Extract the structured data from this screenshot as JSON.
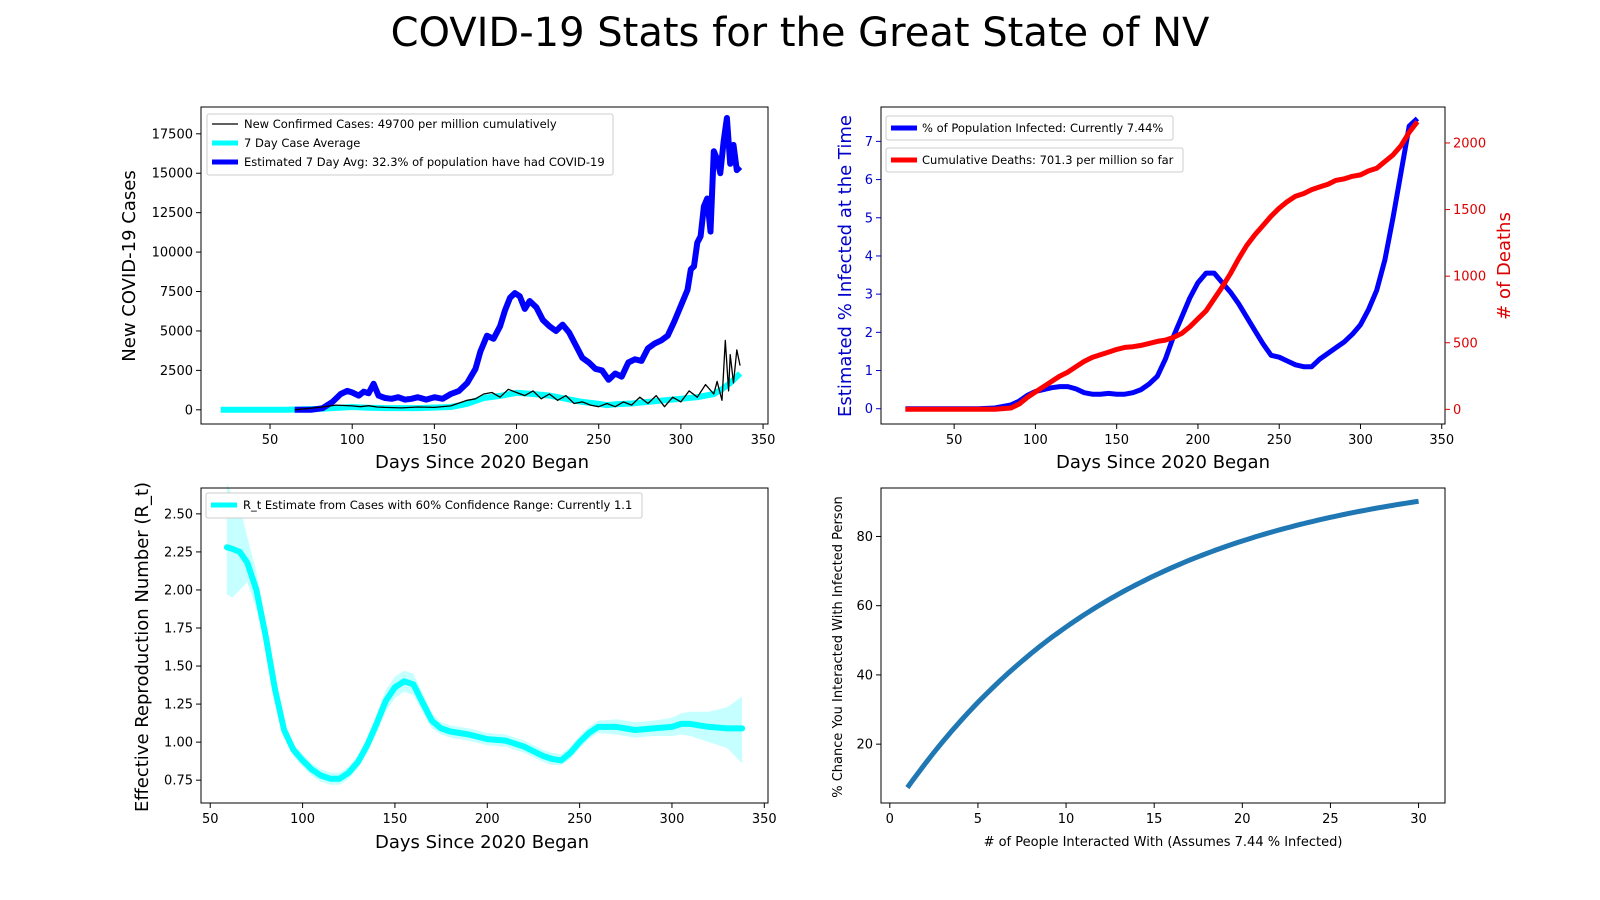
{
  "title": "COVID-19 Stats for the Great State of NV",
  "colors": {
    "daily": "#000000",
    "avg7": "#00ffff",
    "estimated": "#0000ff",
    "pct_infected": "#0000ff",
    "deaths": "#ff0000",
    "rt": "#00ffff",
    "rt_band": "#c6ffff",
    "chance": "#1f77b4"
  },
  "chart_data": [
    {
      "id": "cases",
      "type": "line",
      "xlabel": "Days Since 2020 Began",
      "ylabel": "New COVID-19 Cases",
      "xlim": [
        8,
        353
      ],
      "ylim": [
        -900,
        19200
      ],
      "xticks": [
        50,
        100,
        150,
        200,
        250,
        300,
        350
      ],
      "yticks": [
        0,
        2500,
        5000,
        7500,
        10000,
        12500,
        15000,
        17500
      ],
      "legend": "top-left",
      "series": [
        {
          "name": "New Confirmed Cases: 49700 per million cumulatively",
          "color_key": "daily",
          "x": [
            65,
            80,
            90,
            100,
            105,
            110,
            115,
            120,
            130,
            140,
            150,
            160,
            170,
            175,
            180,
            185,
            190,
            195,
            200,
            205,
            210,
            215,
            220,
            225,
            230,
            235,
            240,
            245,
            250,
            255,
            260,
            265,
            270,
            275,
            280,
            285,
            290,
            295,
            300,
            305,
            310,
            315,
            320,
            322,
            325,
            327,
            329,
            330,
            332,
            334,
            336
          ],
          "y": [
            0,
            150,
            300,
            250,
            200,
            260,
            180,
            150,
            120,
            180,
            150,
            250,
            600,
            700,
            1000,
            1100,
            800,
            1300,
            1100,
            900,
            1200,
            700,
            1000,
            600,
            900,
            400,
            500,
            300,
            200,
            400,
            200,
            500,
            300,
            800,
            400,
            900,
            200,
            800,
            500,
            1200,
            800,
            1600,
            1000,
            1800,
            600,
            4400,
            1200,
            3500,
            1700,
            3800,
            2800
          ]
        },
        {
          "name": "7 Day Case Average",
          "color_key": "avg7",
          "x": [
            20,
            60,
            80,
            100,
            110,
            120,
            140,
            160,
            170,
            180,
            190,
            200,
            210,
            220,
            230,
            240,
            250,
            255,
            260,
            270,
            280,
            290,
            300,
            310,
            320,
            325,
            330,
            334,
            336
          ],
          "y": [
            0,
            0,
            60,
            180,
            130,
            110,
            110,
            180,
            380,
            750,
            880,
            1080,
            1000,
            900,
            700,
            500,
            380,
            300,
            350,
            400,
            500,
            600,
            700,
            800,
            1000,
            1300,
            1700,
            2100,
            2300
          ]
        },
        {
          "name": "Estimated 7 Day Avg: 32.3% of population have had COVID-19",
          "color_key": "estimated",
          "x": [
            65,
            75,
            82,
            88,
            93,
            97,
            100,
            104,
            107,
            110,
            113,
            116,
            120,
            124,
            128,
            132,
            136,
            140,
            145,
            150,
            155,
            160,
            165,
            170,
            175,
            178,
            182,
            186,
            190,
            193,
            196,
            199,
            202,
            205,
            208,
            212,
            216,
            220,
            224,
            228,
            232,
            236,
            240,
            244,
            248,
            252,
            256,
            260,
            264,
            268,
            272,
            276,
            280,
            284,
            288,
            292,
            296,
            300,
            304,
            306,
            308,
            310,
            312,
            314,
            316,
            318,
            320,
            322,
            324,
            326,
            328,
            330,
            332,
            334,
            336
          ],
          "y": [
            0,
            0,
            100,
            500,
            1000,
            1200,
            1100,
            900,
            1150,
            1050,
            1650,
            900,
            750,
            700,
            800,
            650,
            700,
            800,
            650,
            800,
            700,
            1000,
            1200,
            1700,
            2600,
            3700,
            4700,
            4500,
            5300,
            6300,
            7100,
            7400,
            7200,
            6400,
            6900,
            6500,
            5700,
            5300,
            5000,
            5400,
            4900,
            4100,
            3300,
            3000,
            2600,
            2500,
            1900,
            2300,
            2100,
            3000,
            3200,
            3100,
            3900,
            4200,
            4400,
            4700,
            5600,
            6600,
            7600,
            8900,
            9100,
            10600,
            11000,
            12900,
            13400,
            11300,
            16400,
            15900,
            15000,
            17000,
            18500,
            15600,
            16800,
            15200,
            15400
          ]
        }
      ]
    },
    {
      "id": "infected",
      "type": "line",
      "xlabel": "Days Since 2020 Began",
      "ylabel": "Estimated % Infected at the Time",
      "ylabel_right": "# of Deaths",
      "xlim": [
        5,
        352
      ],
      "ylim": [
        -0.4,
        7.9
      ],
      "ylim_right": [
        -110,
        2270
      ],
      "xticks": [
        50,
        100,
        150,
        200,
        250,
        300,
        350
      ],
      "yticks": [
        0,
        1,
        2,
        3,
        4,
        5,
        6,
        7
      ],
      "yticks_right": [
        0,
        500,
        1000,
        1500,
        2000
      ],
      "legend": "top-left",
      "series": [
        {
          "name": "% of Population Infected: Currently 7.44%",
          "color_key": "pct_infected",
          "axis": "left",
          "x": [
            20,
            65,
            75,
            85,
            90,
            95,
            100,
            105,
            110,
            115,
            120,
            125,
            130,
            135,
            140,
            145,
            150,
            155,
            160,
            165,
            170,
            175,
            180,
            185,
            190,
            195,
            200,
            205,
            210,
            215,
            220,
            225,
            230,
            235,
            240,
            245,
            250,
            255,
            260,
            265,
            270,
            275,
            280,
            285,
            290,
            295,
            300,
            305,
            310,
            315,
            320,
            325,
            330,
            335
          ],
          "y": [
            0,
            0,
            0.02,
            0.1,
            0.2,
            0.35,
            0.45,
            0.5,
            0.55,
            0.58,
            0.58,
            0.52,
            0.42,
            0.38,
            0.38,
            0.4,
            0.38,
            0.38,
            0.42,
            0.5,
            0.65,
            0.85,
            1.3,
            1.9,
            2.4,
            2.9,
            3.3,
            3.55,
            3.55,
            3.3,
            3.05,
            2.75,
            2.4,
            2.05,
            1.7,
            1.4,
            1.35,
            1.25,
            1.15,
            1.1,
            1.1,
            1.3,
            1.45,
            1.6,
            1.75,
            1.95,
            2.2,
            2.6,
            3.1,
            3.9,
            5.0,
            6.2,
            7.4,
            7.6
          ]
        },
        {
          "name": "Cumulative Deaths: 701.3 per million so far",
          "color_key": "deaths",
          "axis": "right",
          "x": [
            20,
            65,
            75,
            85,
            90,
            95,
            100,
            105,
            110,
            115,
            120,
            125,
            130,
            135,
            140,
            145,
            150,
            155,
            160,
            165,
            170,
            175,
            180,
            185,
            190,
            195,
            200,
            205,
            210,
            215,
            220,
            225,
            230,
            235,
            240,
            245,
            250,
            255,
            260,
            265,
            270,
            275,
            280,
            285,
            290,
            295,
            300,
            305,
            310,
            315,
            320,
            325,
            330,
            335
          ],
          "y": [
            0,
            0,
            0,
            10,
            40,
            90,
            130,
            170,
            210,
            250,
            280,
            320,
            360,
            390,
            410,
            430,
            450,
            465,
            470,
            480,
            495,
            510,
            520,
            540,
            570,
            620,
            680,
            740,
            830,
            920,
            1020,
            1130,
            1230,
            1310,
            1380,
            1450,
            1510,
            1560,
            1600,
            1620,
            1650,
            1670,
            1690,
            1720,
            1730,
            1750,
            1760,
            1790,
            1810,
            1860,
            1910,
            1980,
            2080,
            2160
          ]
        }
      ]
    },
    {
      "id": "rt",
      "type": "line",
      "xlabel": "Days Since 2020 Began",
      "ylabel": "Effective Reproduction Number (R_t)",
      "xlim": [
        45,
        352
      ],
      "ylim": [
        0.6,
        2.67
      ],
      "xticks": [
        50,
        100,
        150,
        200,
        250,
        300,
        350
      ],
      "yticks": [
        0.75,
        1.0,
        1.25,
        1.5,
        1.75,
        2.0,
        2.25,
        2.5
      ],
      "ytick_labels": [
        "0.75",
        "1.00",
        "1.25",
        "1.50",
        "1.75",
        "2.00",
        "2.25",
        "2.50"
      ],
      "legend": "top-left",
      "series": [
        {
          "name": "R_t Estimate from Cases with 60% Confidence Range: Currently 1.1",
          "color_key": "rt",
          "x": [
            59,
            62,
            66,
            70,
            75,
            80,
            85,
            90,
            95,
            100,
            105,
            110,
            115,
            120,
            125,
            130,
            135,
            140,
            145,
            150,
            155,
            160,
            165,
            170,
            175,
            180,
            190,
            200,
            210,
            220,
            230,
            235,
            240,
            245,
            250,
            255,
            260,
            270,
            280,
            290,
            300,
            305,
            310,
            320,
            330,
            338
          ],
          "y": [
            2.28,
            2.27,
            2.25,
            2.18,
            2.0,
            1.7,
            1.35,
            1.08,
            0.95,
            0.88,
            0.82,
            0.78,
            0.76,
            0.76,
            0.8,
            0.87,
            0.98,
            1.12,
            1.27,
            1.36,
            1.4,
            1.38,
            1.26,
            1.14,
            1.09,
            1.07,
            1.05,
            1.02,
            1.01,
            0.97,
            0.91,
            0.89,
            0.88,
            0.93,
            1.0,
            1.06,
            1.1,
            1.1,
            1.08,
            1.09,
            1.1,
            1.12,
            1.12,
            1.1,
            1.09,
            1.09
          ]
        }
      ],
      "band": {
        "x": [
          59,
          62,
          66,
          70,
          75,
          80,
          85,
          90,
          95,
          100,
          105,
          110,
          115,
          120,
          125,
          130,
          135,
          140,
          145,
          150,
          155,
          160,
          165,
          170,
          175,
          180,
          190,
          200,
          210,
          220,
          230,
          235,
          240,
          245,
          250,
          255,
          260,
          270,
          280,
          290,
          300,
          305,
          310,
          320,
          330,
          338
        ],
        "lower": [
          1.97,
          1.95,
          2.0,
          2.05,
          1.88,
          1.62,
          1.28,
          1.03,
          0.91,
          0.84,
          0.78,
          0.74,
          0.72,
          0.72,
          0.76,
          0.83,
          0.93,
          1.06,
          1.2,
          1.29,
          1.33,
          1.31,
          1.2,
          1.09,
          1.05,
          1.03,
          1.01,
          0.98,
          0.97,
          0.93,
          0.87,
          0.85,
          0.85,
          0.89,
          0.96,
          1.02,
          1.06,
          1.05,
          1.03,
          1.04,
          1.04,
          1.05,
          1.04,
          1.0,
          0.96,
          0.86
        ],
        "upper": [
          2.7,
          2.62,
          2.55,
          2.35,
          2.12,
          1.78,
          1.42,
          1.13,
          0.99,
          0.92,
          0.86,
          0.82,
          0.8,
          0.8,
          0.84,
          0.91,
          1.03,
          1.18,
          1.34,
          1.43,
          1.47,
          1.45,
          1.32,
          1.19,
          1.13,
          1.11,
          1.09,
          1.06,
          1.05,
          1.01,
          0.95,
          0.93,
          0.92,
          0.97,
          1.04,
          1.1,
          1.14,
          1.15,
          1.13,
          1.14,
          1.16,
          1.19,
          1.2,
          1.2,
          1.23,
          1.3
        ]
      }
    },
    {
      "id": "chance",
      "type": "line",
      "xlabel": "# of People Interacted With (Assumes 7.44 % Infected)",
      "ylabel": "% Chance You Interacted With Infected Person",
      "xlim": [
        -0.5,
        31.5
      ],
      "ylim": [
        3,
        94
      ],
      "xticks": [
        0,
        5,
        10,
        15,
        20,
        25,
        30
      ],
      "yticks": [
        20,
        40,
        60,
        80
      ],
      "infected_fraction": 0.0744,
      "x_range": [
        1,
        30
      ]
    }
  ]
}
